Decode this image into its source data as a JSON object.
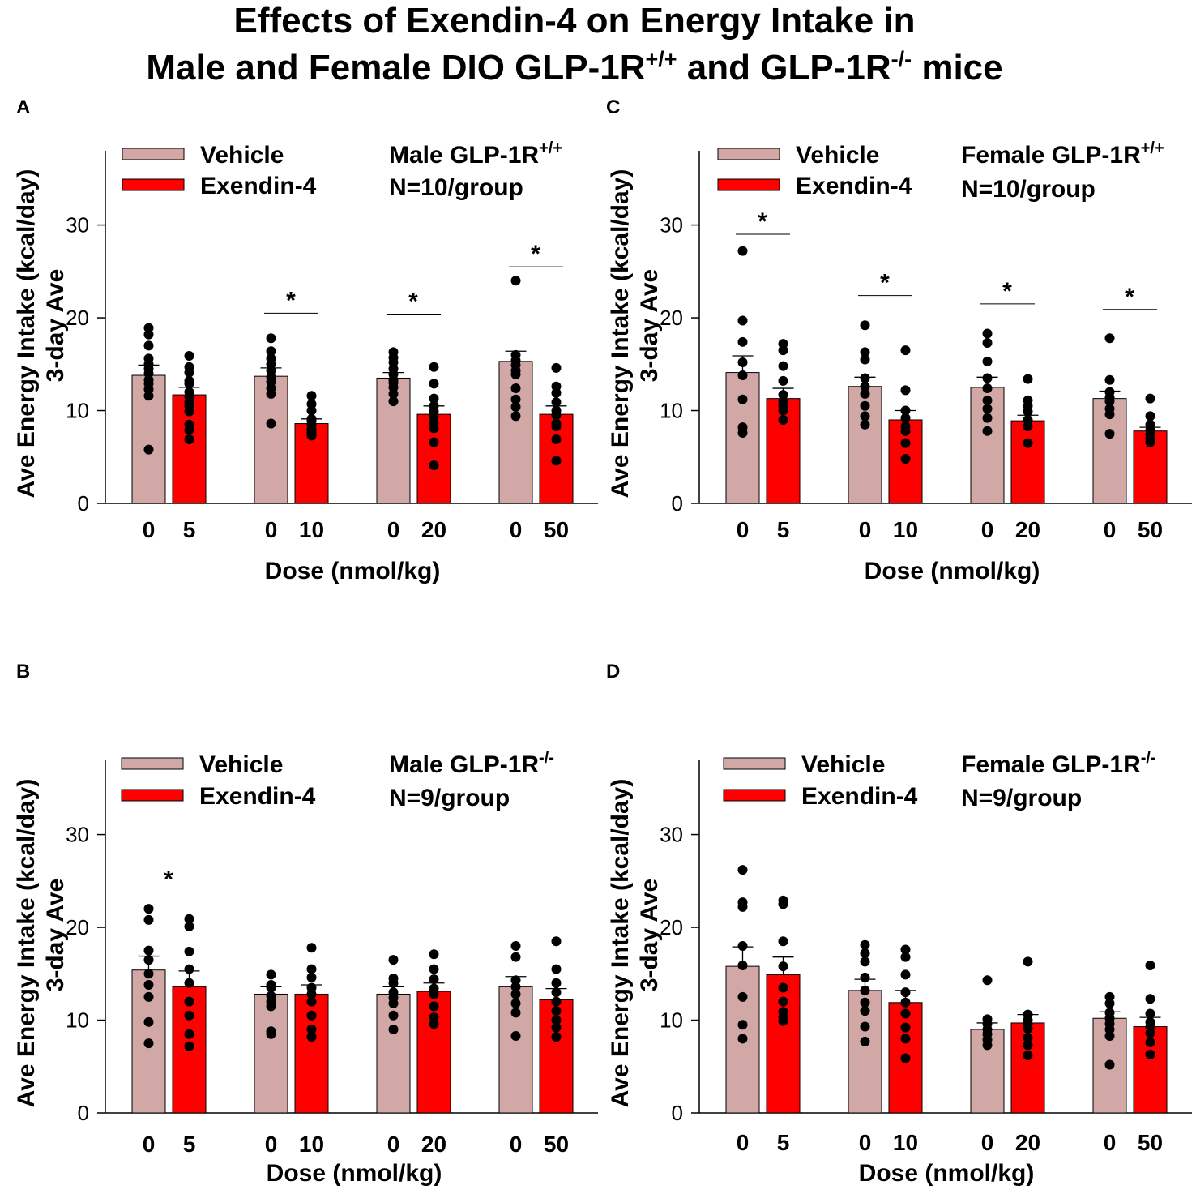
{
  "figure": {
    "title_line1": "Effects of Exendin-4 on Energy Intake in",
    "title_line2_a": "Male and Female DIO GLP-1R",
    "title_line2_sup1": "+/+",
    "title_line2_b": " and GLP-1R",
    "title_line2_sup2": "-/-",
    "title_line2_c": " mice"
  },
  "colors": {
    "vehicle": "#d1a8a6",
    "exendin": "#ff0000",
    "axis": "#000000"
  },
  "chart_data": [
    {
      "panel": "A",
      "type": "bar",
      "ylabel_line1": "Ave Energy  Intake (kcal/day)",
      "ylabel_line2": "3-day Ave",
      "xlabel": "Dose (nmol/kg)",
      "ylim": [
        0,
        38
      ],
      "yticks": [
        "0",
        "10",
        "20",
        "30"
      ],
      "legend": [
        "Vehicle",
        "Exendin-4"
      ],
      "info_title": "Male GLP-1R",
      "info_sup": "+/+",
      "info_n": "N=10/group",
      "groups": [
        {
          "dose": "5",
          "vehicle": 13.8,
          "vehicle_sem": 1.1,
          "exendin": 11.7,
          "exendin_sem": 0.8,
          "sig": false,
          "sig_y": 0
        },
        {
          "dose": "10",
          "vehicle": 13.7,
          "vehicle_sem": 0.9,
          "exendin": 8.6,
          "exendin_sem": 0.5,
          "sig": true,
          "sig_y": 20.5
        },
        {
          "dose": "20",
          "vehicle": 13.5,
          "vehicle_sem": 0.6,
          "exendin": 9.6,
          "exendin_sem": 0.9,
          "sig": true,
          "sig_y": 20.4
        },
        {
          "dose": "50",
          "vehicle": 15.3,
          "vehicle_sem": 1.1,
          "exendin": 9.6,
          "exendin_sem": 0.9,
          "sig": true,
          "sig_y": 25.5
        }
      ],
      "points": [
        {
          "v": [
            18.9,
            18.2,
            17.0,
            15.6,
            15.0,
            14.5,
            14.0,
            13.3,
            12.9,
            12.3,
            11.6,
            5.8
          ],
          "e": [
            15.9,
            14.7,
            14.1,
            13.2,
            12.9,
            12.0,
            11.5,
            10.9,
            10.5,
            9.9,
            8.5,
            7.9,
            6.9
          ]
        },
        {
          "v": [
            17.8,
            16.4,
            15.6,
            15.0,
            14.3,
            13.6,
            13.1,
            12.4,
            11.8,
            8.6
          ],
          "e": [
            11.6,
            10.7,
            10.0,
            9.1,
            8.9,
            8.5,
            8.0,
            7.7,
            7.5,
            7.3
          ]
        },
        {
          "v": [
            16.3,
            15.7,
            15.2,
            14.5,
            13.9,
            13.3,
            13.0,
            12.5,
            11.8,
            11.0
          ],
          "e": [
            14.7,
            12.9,
            11.3,
            10.5,
            9.9,
            9.3,
            8.7,
            8.1,
            6.6,
            4.1
          ]
        },
        {
          "v": [
            24.0,
            16.0,
            15.4,
            14.9,
            14.3,
            13.9,
            12.4,
            11.2,
            10.4,
            9.4
          ],
          "e": [
            14.6,
            12.6,
            11.9,
            10.9,
            10.0,
            9.5,
            8.6,
            8.3,
            6.9,
            4.6
          ]
        }
      ]
    },
    {
      "panel": "B",
      "type": "bar",
      "ylabel_line1": "Ave Energy  Intake (kcal/day)",
      "ylabel_line2": "3-day Ave",
      "xlabel": "Dose (nmol/kg)",
      "ylim": [
        0,
        38
      ],
      "yticks": [
        "0",
        "10",
        "20",
        "30"
      ],
      "legend": [
        "Vehicle",
        "Exendin-4"
      ],
      "info_title": "Male GLP-1R",
      "info_sup": "-/-",
      "info_n": "N=9/group",
      "groups": [
        {
          "dose": "5",
          "vehicle": 15.4,
          "vehicle_sem": 1.5,
          "exendin": 13.6,
          "exendin_sem": 1.7,
          "sig": true,
          "sig_y": 23.8
        },
        {
          "dose": "10",
          "vehicle": 12.8,
          "vehicle_sem": 0.8,
          "exendin": 12.8,
          "exendin_sem": 1.0,
          "sig": false,
          "sig_y": 0
        },
        {
          "dose": "20",
          "vehicle": 12.8,
          "vehicle_sem": 0.8,
          "exendin": 13.1,
          "exendin_sem": 0.9,
          "sig": false,
          "sig_y": 0
        },
        {
          "dose": "50",
          "vehicle": 13.6,
          "vehicle_sem": 1.1,
          "exendin": 12.2,
          "exendin_sem": 1.2,
          "sig": false,
          "sig_y": 0
        }
      ],
      "points": [
        {
          "v": [
            22.0,
            20.8,
            17.5,
            16.5,
            15.0,
            13.8,
            12.5,
            9.8,
            7.5
          ],
          "e": [
            20.9,
            20.1,
            17.4,
            15.5,
            14.0,
            12.0,
            10.5,
            8.5,
            7.2
          ]
        },
        {
          "v": [
            14.9,
            13.8,
            13.5,
            12.6,
            12.0,
            11.5,
            8.8,
            8.5
          ],
          "e": [
            17.8,
            15.5,
            14.6,
            13.5,
            12.8,
            12.0,
            10.5,
            9.0,
            8.2
          ]
        },
        {
          "v": [
            16.5,
            14.5,
            14.0,
            13.0,
            12.4,
            11.8,
            10.5,
            9.0
          ],
          "e": [
            17.1,
            15.5,
            14.4,
            13.4,
            12.8,
            11.5,
            10.3,
            9.6
          ]
        },
        {
          "v": [
            18.0,
            16.8,
            14.3,
            13.6,
            12.8,
            11.8,
            10.8,
            8.3
          ],
          "e": [
            18.5,
            15.5,
            14.0,
            13.0,
            12.0,
            11.0,
            10.0,
            9.2,
            8.2
          ]
        }
      ]
    },
    {
      "panel": "C",
      "type": "bar",
      "ylabel_line1": "Ave Energy  Intake (kcal/day)",
      "ylabel_line2": "3-day Ave",
      "xlabel": "Dose (nmol/kg)",
      "ylim": [
        0,
        38
      ],
      "yticks": [
        "0",
        "10",
        "20",
        "30"
      ],
      "legend": [
        "Vehicle",
        "Exendin-4"
      ],
      "info_title": "Female GLP-1R",
      "info_sup": "+/+",
      "info_n": "N=10/group",
      "groups": [
        {
          "dose": "5",
          "vehicle": 14.1,
          "vehicle_sem": 1.8,
          "exendin": 11.3,
          "exendin_sem": 1.1,
          "sig": true,
          "sig_y": 29.0
        },
        {
          "dose": "10",
          "vehicle": 12.6,
          "vehicle_sem": 1.0,
          "exendin": 9.0,
          "exendin_sem": 1.0,
          "sig": true,
          "sig_y": 22.4
        },
        {
          "dose": "20",
          "vehicle": 12.5,
          "vehicle_sem": 1.1,
          "exendin": 8.9,
          "exendin_sem": 0.6,
          "sig": true,
          "sig_y": 21.5
        },
        {
          "dose": "50",
          "vehicle": 11.3,
          "vehicle_sem": 0.8,
          "exendin": 7.8,
          "exendin_sem": 0.4,
          "sig": true,
          "sig_y": 20.9
        }
      ],
      "points": [
        {
          "v": [
            27.2,
            19.7,
            17.4,
            15.2,
            13.8,
            11.2,
            8.2,
            7.6
          ],
          "e": [
            17.2,
            16.5,
            14.8,
            13.2,
            11.7,
            11.0,
            10.5,
            10.0,
            9.0
          ]
        },
        {
          "v": [
            19.2,
            16.3,
            15.5,
            13.5,
            12.6,
            11.8,
            10.5,
            9.4,
            8.5
          ],
          "e": [
            16.5,
            12.2,
            10.0,
            9.2,
            8.3,
            7.8,
            6.5,
            4.8
          ]
        },
        {
          "v": [
            18.3,
            17.3,
            15.3,
            13.5,
            12.4,
            11.1,
            10.2,
            9.2,
            7.8
          ],
          "e": [
            13.4,
            11.1,
            10.5,
            9.9,
            9.0,
            8.3,
            6.5
          ]
        },
        {
          "v": [
            17.8,
            13.3,
            12.0,
            11.4,
            11.0,
            10.2,
            9.6,
            7.5
          ],
          "e": [
            11.3,
            9.4,
            8.5,
            7.9,
            7.4,
            7.0,
            6.6
          ]
        }
      ]
    },
    {
      "panel": "D",
      "type": "bar",
      "ylabel_line1": "Ave Energy  Intake (kcal/day)",
      "ylabel_line2": "3-day Ave",
      "xlabel": "Dose (nmol/kg)",
      "ylim": [
        0,
        38
      ],
      "yticks": [
        "0",
        "10",
        "20",
        "30"
      ],
      "legend": [
        "Vehicle",
        "Exendin-4"
      ],
      "info_title": "Female GLP-1R",
      "info_sup": "-/-",
      "info_n": "N=9/group",
      "groups": [
        {
          "dose": "5",
          "vehicle": 15.8,
          "vehicle_sem": 2.1,
          "exendin": 14.9,
          "exendin_sem": 1.9,
          "sig": false,
          "sig_y": 0
        },
        {
          "dose": "10",
          "vehicle": 13.2,
          "vehicle_sem": 1.2,
          "exendin": 11.9,
          "exendin_sem": 1.3,
          "sig": false,
          "sig_y": 0
        },
        {
          "dose": "20",
          "vehicle": 9.0,
          "vehicle_sem": 0.7,
          "exendin": 9.7,
          "exendin_sem": 0.9,
          "sig": false,
          "sig_y": 0
        },
        {
          "dose": "50",
          "vehicle": 10.2,
          "vehicle_sem": 0.7,
          "exendin": 9.3,
          "exendin_sem": 1.0,
          "sig": false,
          "sig_y": 0
        }
      ],
      "points": [
        {
          "v": [
            26.2,
            22.7,
            22.2,
            18.0,
            15.9,
            12.5,
            9.5,
            8.0
          ],
          "e": [
            22.9,
            22.5,
            18.5,
            15.8,
            13.5,
            12.0,
            10.9,
            10.3,
            9.9
          ]
        },
        {
          "v": [
            18.1,
            17.2,
            16.3,
            14.6,
            13.2,
            11.9,
            11.0,
            9.3,
            7.7
          ],
          "e": [
            17.6,
            16.8,
            14.9,
            13.0,
            11.9,
            10.7,
            9.2,
            8.0,
            5.9
          ]
        },
        {
          "v": [
            14.3,
            10.1,
            9.6,
            9.0,
            8.5,
            7.9,
            7.3
          ],
          "e": [
            16.3,
            10.6,
            10.0,
            9.6,
            9.1,
            8.1,
            7.3,
            6.2
          ]
        },
        {
          "v": [
            12.5,
            11.8,
            10.8,
            10.2,
            9.6,
            9.0,
            8.3,
            5.2
          ],
          "e": [
            15.9,
            12.3,
            10.7,
            9.8,
            9.3,
            8.6,
            7.6,
            6.3
          ]
        }
      ]
    }
  ]
}
